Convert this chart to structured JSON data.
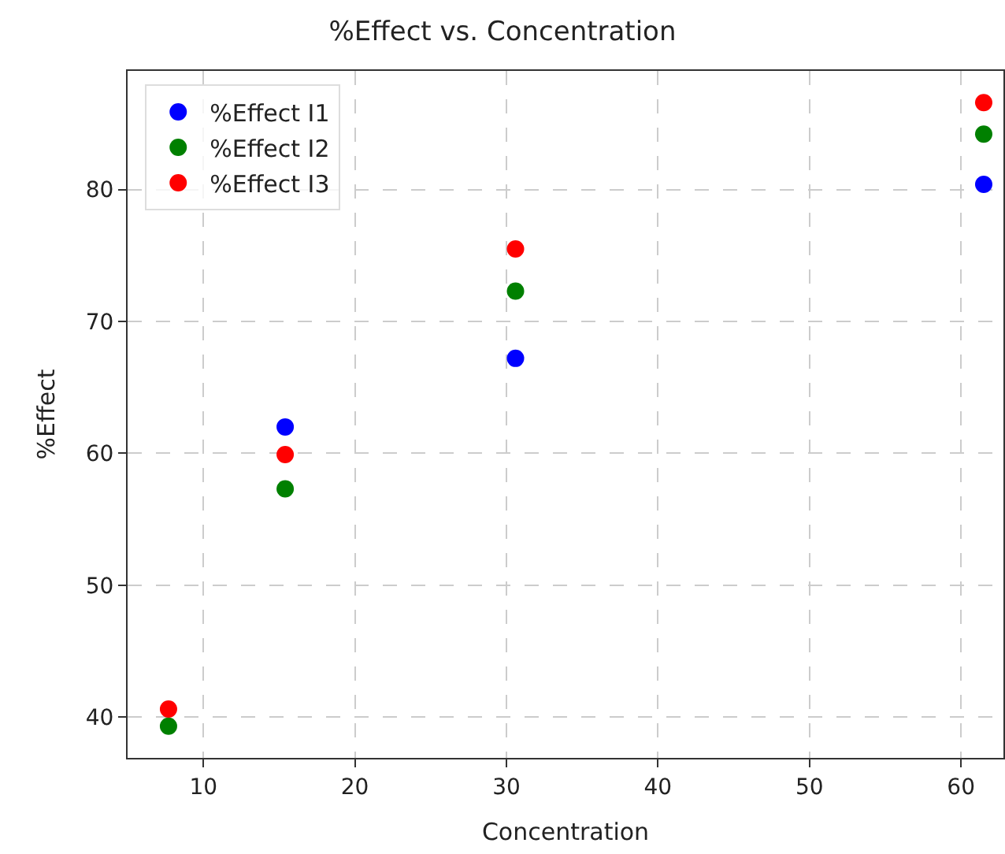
{
  "chart_data": {
    "type": "scatter",
    "title": "%Effect vs. Concentration",
    "xlabel": "Concentration",
    "ylabel": "%Effect",
    "x": [
      7.7,
      15.4,
      30.6,
      61.5
    ],
    "series": [
      {
        "name": "%Effect I1",
        "color": "#0000ff",
        "values": [
          null,
          62.0,
          67.2,
          80.4
        ]
      },
      {
        "name": "%Effect I2",
        "color": "#008000",
        "values": [
          39.3,
          57.3,
          72.3,
          84.2
        ]
      },
      {
        "name": "%Effect I3",
        "color": "#ff0000",
        "values": [
          40.6,
          59.9,
          75.5,
          86.6
        ]
      }
    ],
    "xlim": [
      5,
      62.8
    ],
    "ylim": [
      36.9,
      89
    ],
    "xticks": [
      10,
      20,
      30,
      40,
      50,
      60
    ],
    "yticks": [
      40,
      50,
      60,
      70,
      80
    ],
    "grid": true,
    "legend": "top left",
    "marker": "circle"
  }
}
